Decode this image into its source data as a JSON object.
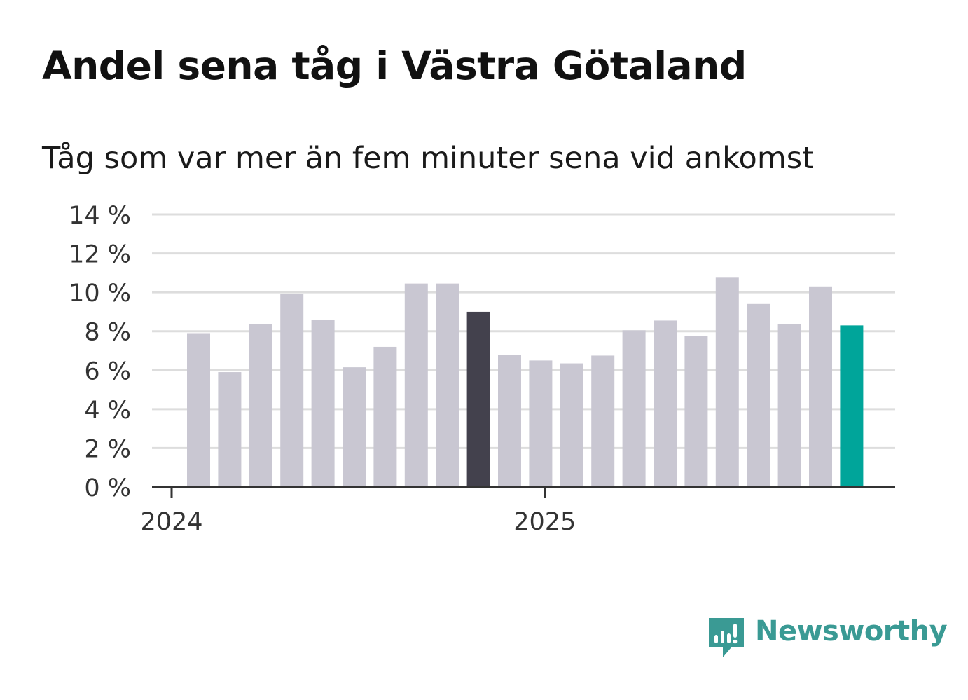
{
  "chart_data": {
    "type": "bar",
    "title": "Andel sena tåg i Västra Götaland",
    "subtitle": "Tåg som var mer än fem minuter sena vid ankomst",
    "ylabel": "",
    "xlabel": "",
    "ylim": [
      0,
      14
    ],
    "yticks": [
      {
        "value": 0,
        "label": "0 %"
      },
      {
        "value": 2,
        "label": "2 %"
      },
      {
        "value": 4,
        "label": "4 %"
      },
      {
        "value": 6,
        "label": "6 %"
      },
      {
        "value": 8,
        "label": "8 %"
      },
      {
        "value": 10,
        "label": "10 %"
      },
      {
        "value": 12,
        "label": "12 %"
      },
      {
        "value": 14,
        "label": "14 %"
      }
    ],
    "xticks": [
      {
        "label": "2024",
        "index": -0.5
      },
      {
        "label": "2025",
        "index": 11.5
      }
    ],
    "values": [
      7.9,
      5.9,
      8.35,
      9.9,
      8.6,
      6.15,
      7.2,
      10.45,
      10.45,
      9.0,
      6.8,
      6.5,
      6.35,
      6.75,
      8.05,
      8.55,
      7.75,
      10.75,
      9.4,
      8.35,
      10.3,
      8.3
    ],
    "highlight": {
      "9": "dark",
      "21": "accent"
    },
    "colors": {
      "default": "#c9c7d2",
      "dark": "#43414d",
      "accent": "#00a59a",
      "grid": "#dddddd",
      "axis": "#333333",
      "text": "#333333"
    },
    "grid": true
  },
  "brand": {
    "name": "Newsworthy",
    "color": "#3a9a94"
  }
}
